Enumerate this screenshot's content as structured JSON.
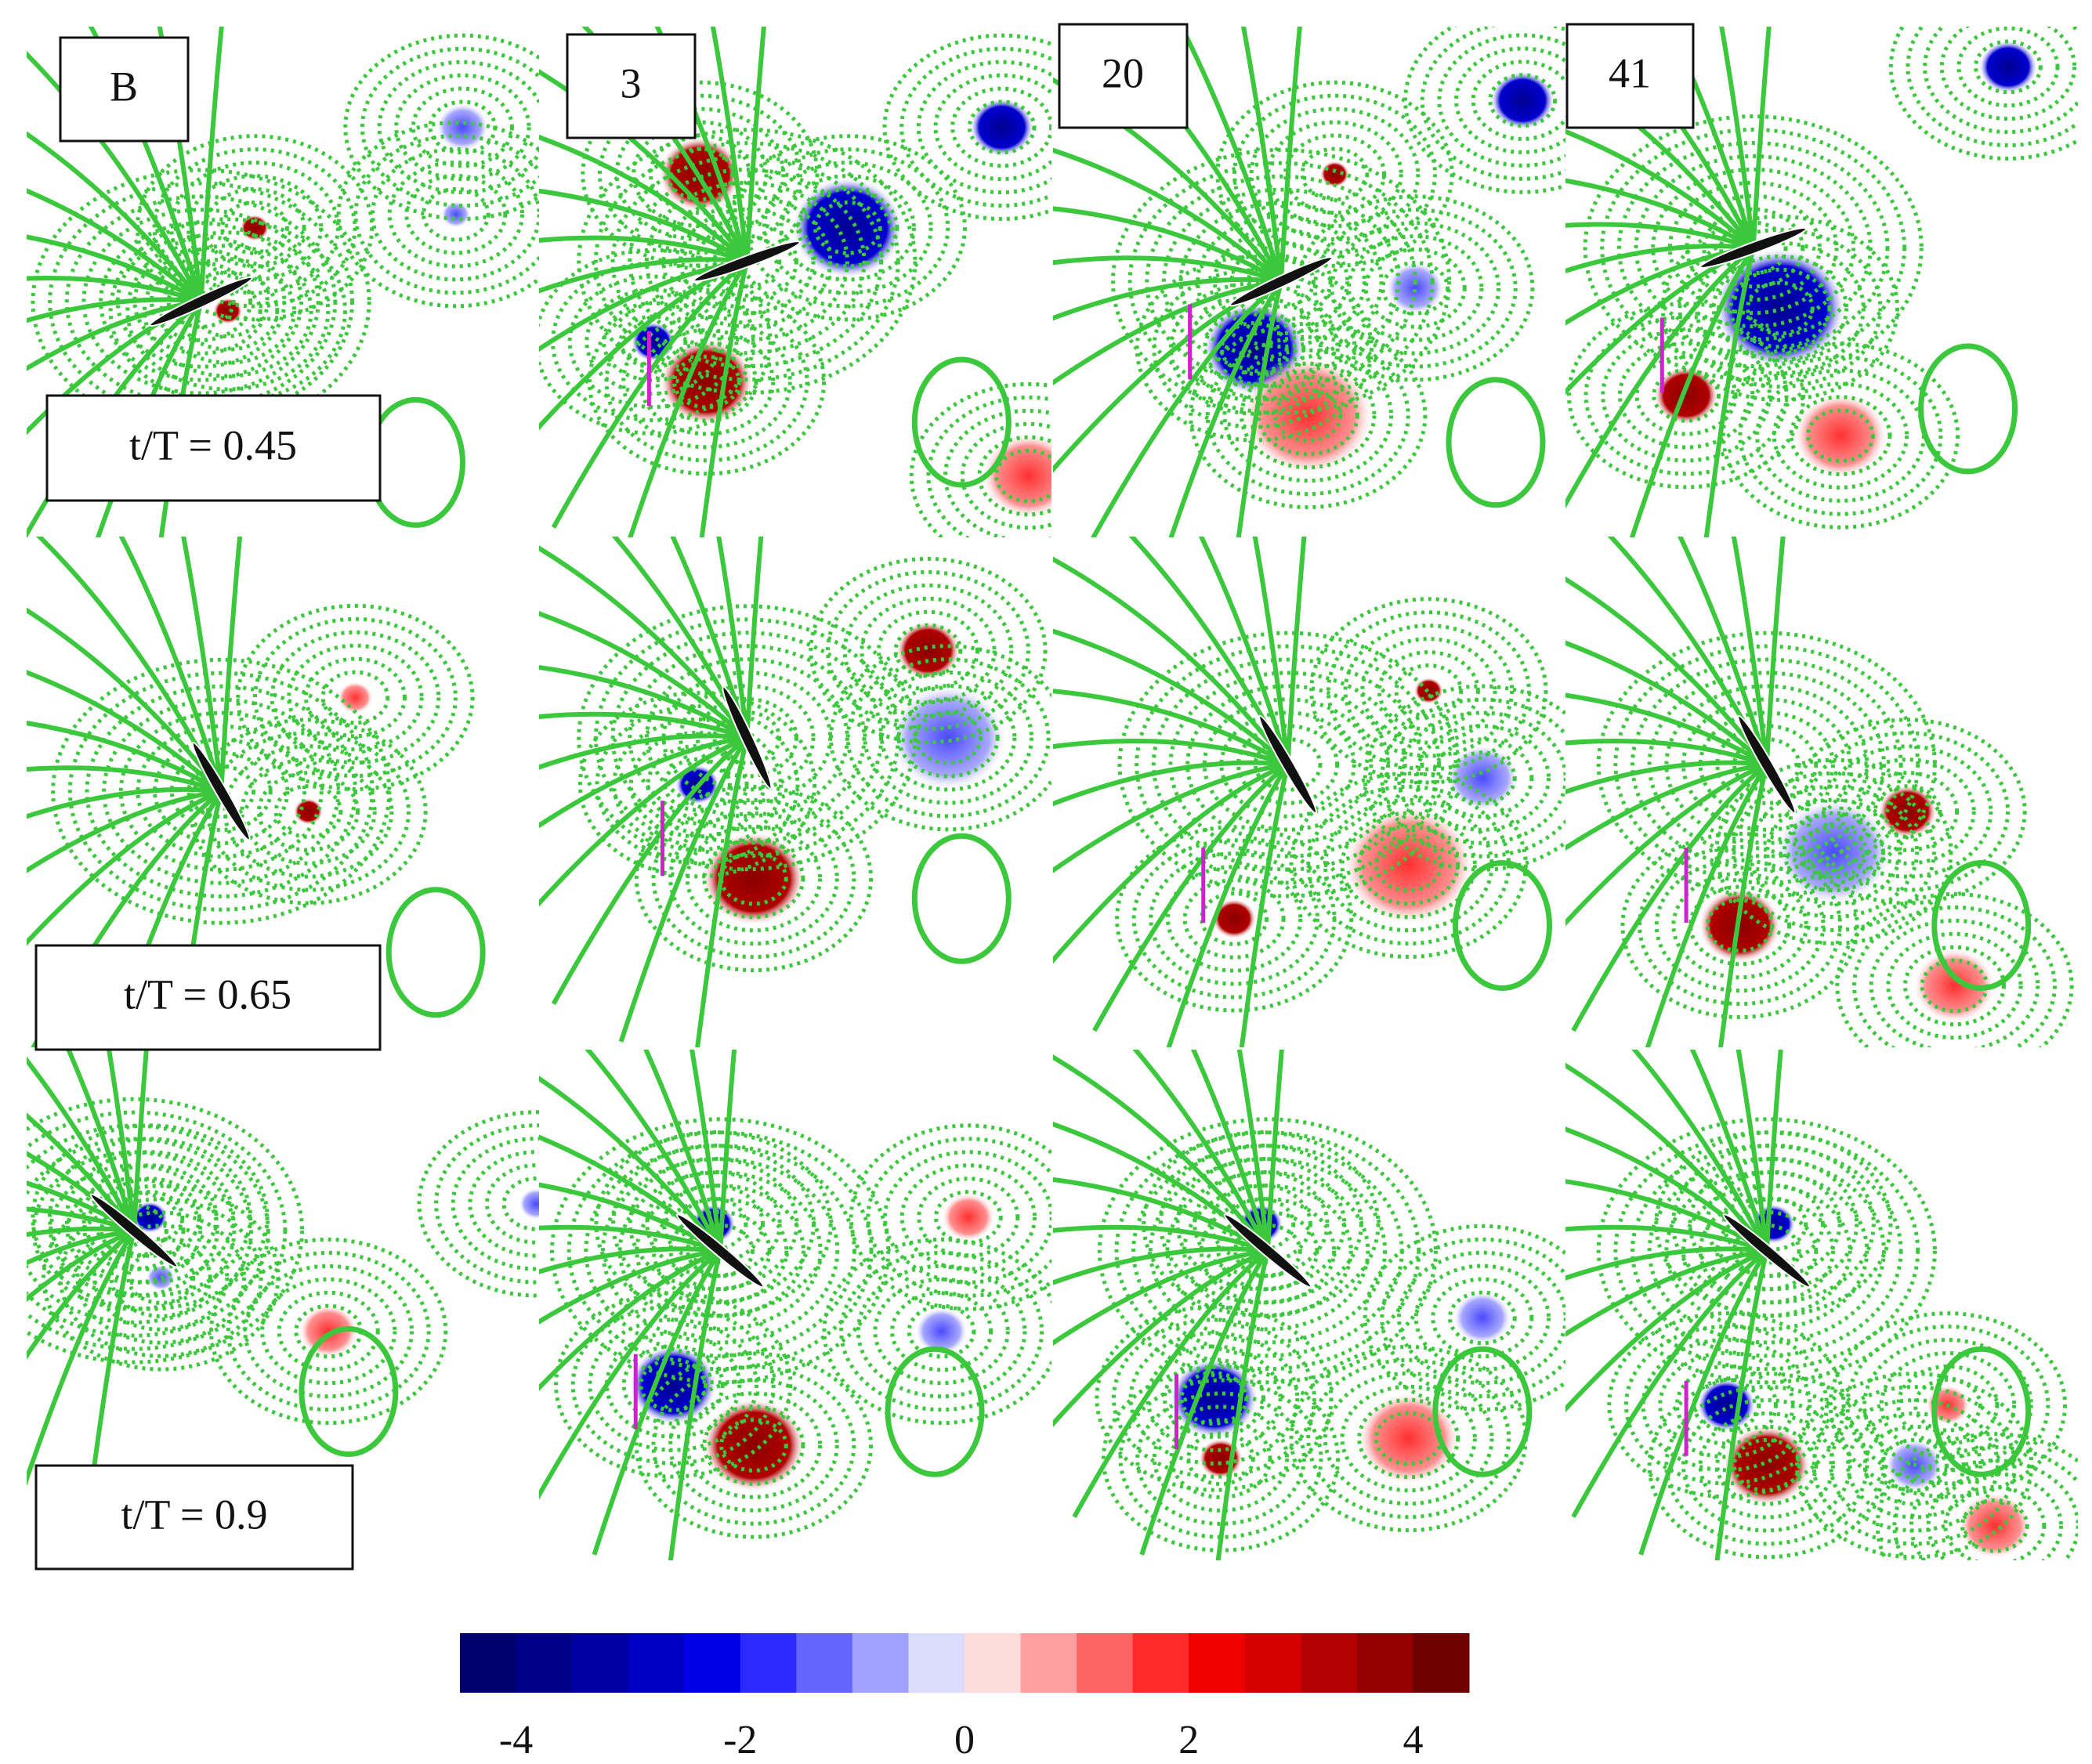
{
  "panels": {
    "columns": [
      "B",
      "3",
      "20",
      "41"
    ],
    "rows": [
      "t/T = 0.45",
      "t/T = 0.65",
      "t/T = 0.9"
    ]
  },
  "chart_data": {
    "type": "colorbar",
    "levels": [
      -4.5,
      -4,
      -3.5,
      -3,
      -2.5,
      -2,
      -1.5,
      -1,
      -0.5,
      0,
      0.5,
      1,
      1.5,
      2,
      2.5,
      3,
      3.5,
      4,
      4.5
    ],
    "colors": [
      "#00006e",
      "#000088",
      "#0000a4",
      "#0000c4",
      "#0000e8",
      "#2a2aff",
      "#6464ff",
      "#a0a0ff",
      "#dcdcff",
      "#ffdcdc",
      "#ffa0a0",
      "#ff6464",
      "#ff2a2a",
      "#f00000",
      "#d40000",
      "#b40000",
      "#940000",
      "#700000"
    ],
    "xlim": [
      -4.5,
      4.5
    ],
    "xticks": [
      -4,
      -2,
      0,
      2,
      4
    ]
  }
}
